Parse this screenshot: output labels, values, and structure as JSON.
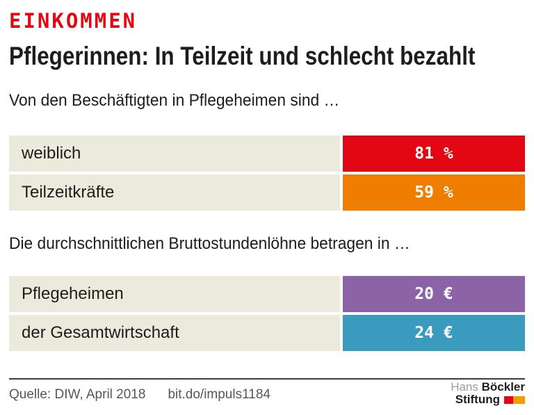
{
  "header": {
    "kicker": "EINKOMMEN",
    "title": "Pflegerinnen: In Teilzeit und schlecht bezahlt"
  },
  "sections": [
    {
      "intro": "Von den Beschäftigten in Pflegeheimen sind …",
      "rows": [
        {
          "label": "weiblich",
          "value": "81 %",
          "bar_color": "#e30613"
        },
        {
          "label": "Teilzeitkräfte",
          "value": "59 %",
          "bar_color": "#ef7d00"
        }
      ]
    },
    {
      "intro": "Die durchschnittlichen Bruttostundenlöhne betragen in …",
      "rows": [
        {
          "label": "Pflegeheimen",
          "value": "20 €",
          "bar_color": "#8c63a6"
        },
        {
          "label": "der Gesamtwirtschaft",
          "value": "24 €",
          "bar_color": "#3a9bbf"
        }
      ]
    }
  ],
  "chart_data": [
    {
      "type": "bar",
      "orientation": "horizontal",
      "title": "Von den Beschäftigten in Pflegeheimen sind …",
      "categories": [
        "weiblich",
        "Teilzeitkräfte"
      ],
      "values": [
        81,
        59
      ],
      "unit": "%",
      "bar_colors": [
        "#e30613",
        "#ef7d00"
      ],
      "bar_style": "equal-width value boxes with value labels inside"
    },
    {
      "type": "bar",
      "orientation": "horizontal",
      "title": "Die durchschnittlichen Bruttostundenlöhne betragen in …",
      "categories": [
        "Pflegeheimen",
        "der Gesamtwirtschaft"
      ],
      "values": [
        20,
        24
      ],
      "unit": "€",
      "bar_colors": [
        "#8c63a6",
        "#3a9bbf"
      ],
      "bar_style": "equal-width value boxes with value labels inside"
    }
  ],
  "footer": {
    "source": "Quelle: DIW, April 2018",
    "link": "bit.do/impuls1184",
    "logo": {
      "name_light": "Hans",
      "name_bold": "Böckler",
      "line2": "Stiftung",
      "mark_colors": [
        "#e30613",
        "#f59c00"
      ]
    }
  },
  "colors": {
    "kicker": "#e30613",
    "label_bg": "#ece9dd",
    "text": "#1d1d1b",
    "footer_text": "#575756",
    "rule": "#3c3c3b"
  }
}
